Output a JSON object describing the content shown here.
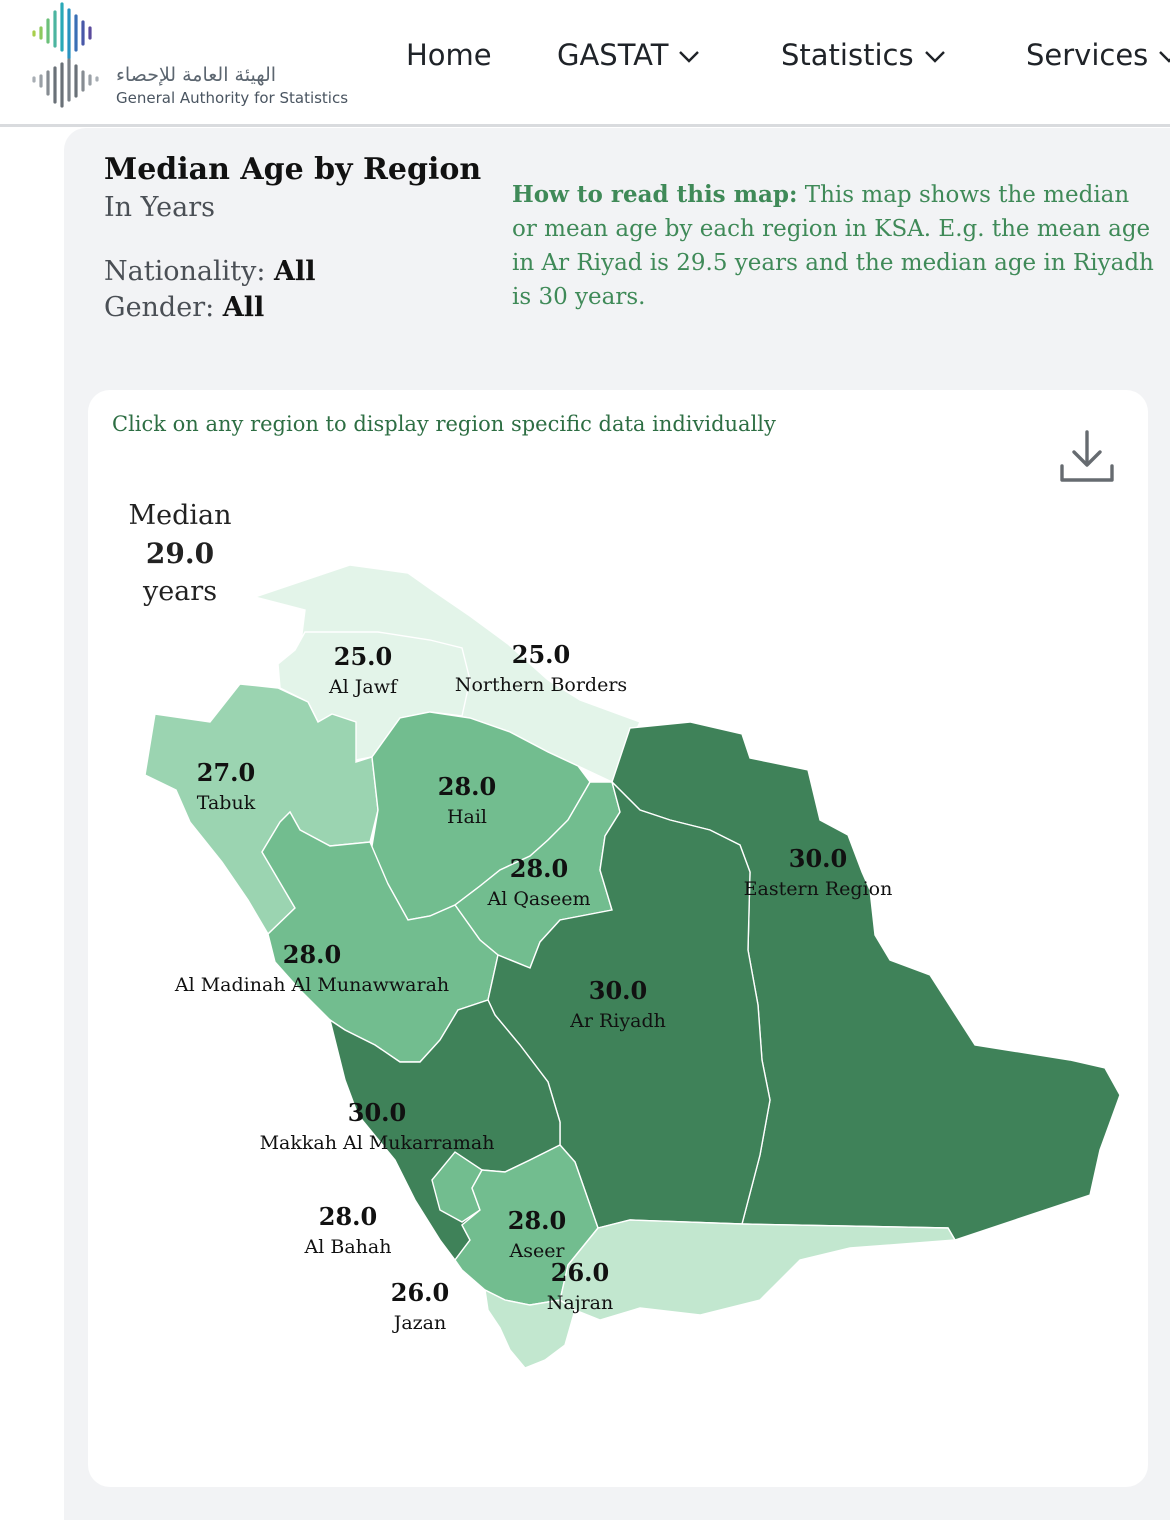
{
  "header": {
    "logo_ar": "الهيئة العامة للإحصاء",
    "logo_en": "General Authority for Statistics",
    "nav": [
      {
        "label": "Home",
        "has_dropdown": false
      },
      {
        "label": "GASTAT",
        "has_dropdown": true
      },
      {
        "label": "Statistics",
        "has_dropdown": true
      },
      {
        "label": "Services",
        "has_dropdown": true
      }
    ]
  },
  "page": {
    "title": "Median Age by Region",
    "subtitle": "In Years",
    "nationality_label": "Nationality:",
    "nationality_value": "All",
    "gender_label": "Gender:",
    "gender_value": "All",
    "howto_heading": "How to read this map:",
    "howto_text": " This map shows the median or mean age by each region in KSA. E.g. the mean age in Ar Riyad is 29.5 years and the median age in Riyadh is 30 years."
  },
  "map": {
    "hint": "Click on any region to display region specific data individually",
    "download_icon": "download-icon",
    "summary_label": "Median",
    "summary_value": "29.0",
    "summary_unit": "years",
    "colors": {
      "25.0": "#e3f4e9",
      "26.0": "#c2e7cf",
      "27.0": "#9bd4b1",
      "28.0": "#72bd8f",
      "30.0": "#3f8259"
    },
    "regions": [
      {
        "name": "Al Jawf",
        "value": "25.0"
      },
      {
        "name": "Northern Borders",
        "value": "25.0"
      },
      {
        "name": "Tabuk",
        "value": "27.0"
      },
      {
        "name": "Hail",
        "value": "28.0"
      },
      {
        "name": "Al Qaseem",
        "value": "28.0"
      },
      {
        "name": "Eastern Region",
        "value": "30.0"
      },
      {
        "name": "Al Madinah Al Munawwarah",
        "value": "28.0"
      },
      {
        "name": "Ar Riyadh",
        "value": "30.0"
      },
      {
        "name": "Makkah Al Mukarramah",
        "value": "30.0"
      },
      {
        "name": "Al Bahah",
        "value": "28.0"
      },
      {
        "name": "Aseer",
        "value": "28.0"
      },
      {
        "name": "Najran",
        "value": "26.0"
      },
      {
        "name": "Jazan",
        "value": "26.0"
      }
    ]
  }
}
